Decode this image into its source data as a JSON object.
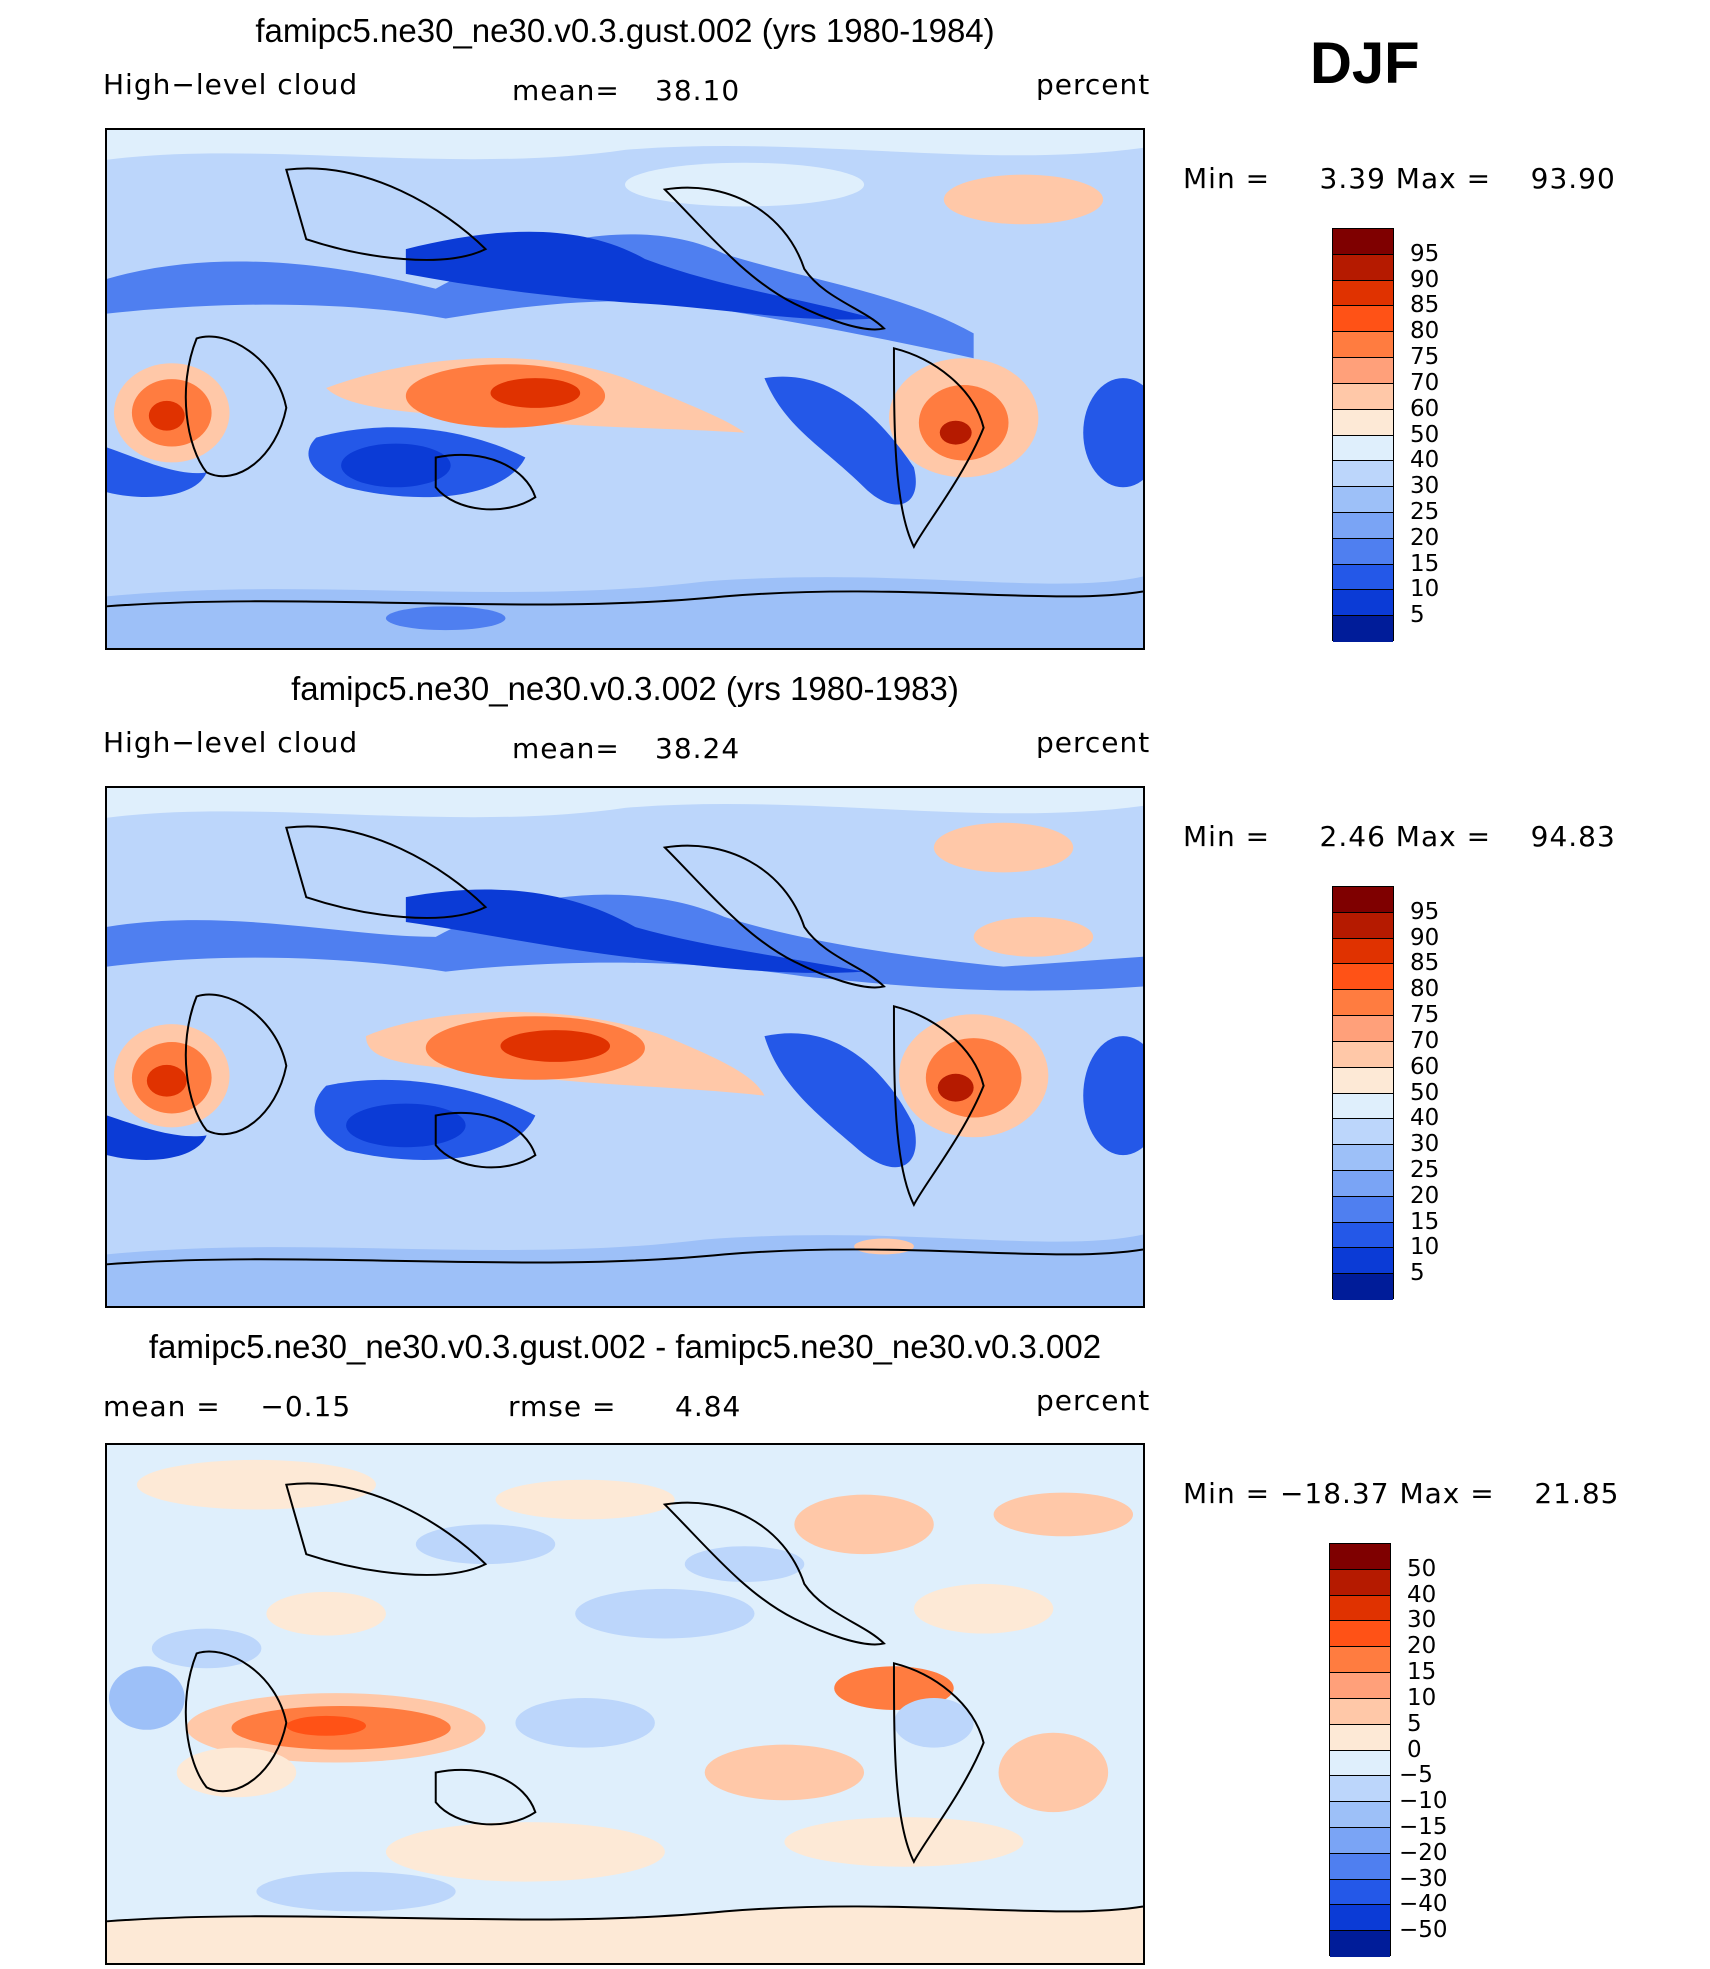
{
  "season": "DJF",
  "panels": [
    {
      "title": "famipc5.ne30_ne30.v0.3.gust.002 (yrs 1980-1984)",
      "left_label": "High−level cloud",
      "mid_label": "mean=",
      "mid_value": "38.10",
      "right_label": "percent",
      "minmax": "Min =     3.39 Max =    93.90",
      "kind": "abs"
    },
    {
      "title": "famipc5.ne30_ne30.v0.3.002 (yrs 1980-1983)",
      "left_label": "High−level cloud",
      "mid_label": "mean=",
      "mid_value": "38.24",
      "right_label": "percent",
      "minmax": "Min =     2.46 Max =    94.83",
      "kind": "abs"
    },
    {
      "title": "famipc5.ne30_ne30.v0.3.gust.002 - famipc5.ne30_ne30.v0.3.002",
      "left_label": "mean =    −0.15",
      "mid_label": "rmse =",
      "mid_value": "4.84",
      "right_label": "percent",
      "minmax": "Min = −18.37 Max =    21.85",
      "kind": "diff"
    }
  ],
  "colorbar_abs": {
    "labels": [
      "95",
      "90",
      "85",
      "80",
      "75",
      "70",
      "60",
      "50",
      "40",
      "30",
      "25",
      "20",
      "15",
      "10",
      "5"
    ],
    "colors": [
      "#7f0000",
      "#b51a00",
      "#e03200",
      "#ff5216",
      "#ff7c40",
      "#ffa07a",
      "#ffc8a8",
      "#fde9d6",
      "#dfeffc",
      "#bcd6fb",
      "#9dc0f8",
      "#7aa4f5",
      "#4f7ff0",
      "#2458e8",
      "#0b3bd6",
      "#001c99"
    ]
  },
  "colorbar_diff": {
    "labels": [
      "50",
      "40",
      "30",
      "20",
      "15",
      "10",
      "5",
      "0",
      "−5",
      "−10",
      "−15",
      "−20",
      "−30",
      "−40",
      "−50"
    ],
    "colors": [
      "#7f0000",
      "#b51a00",
      "#e03200",
      "#ff5216",
      "#ff7c40",
      "#ffa07a",
      "#ffc8a8",
      "#fde9d6",
      "#dfeffc",
      "#bcd6fb",
      "#9dc0f8",
      "#7aa4f5",
      "#4f7ff0",
      "#2458e8",
      "#0b3bd6",
      "#001c99"
    ]
  }
}
